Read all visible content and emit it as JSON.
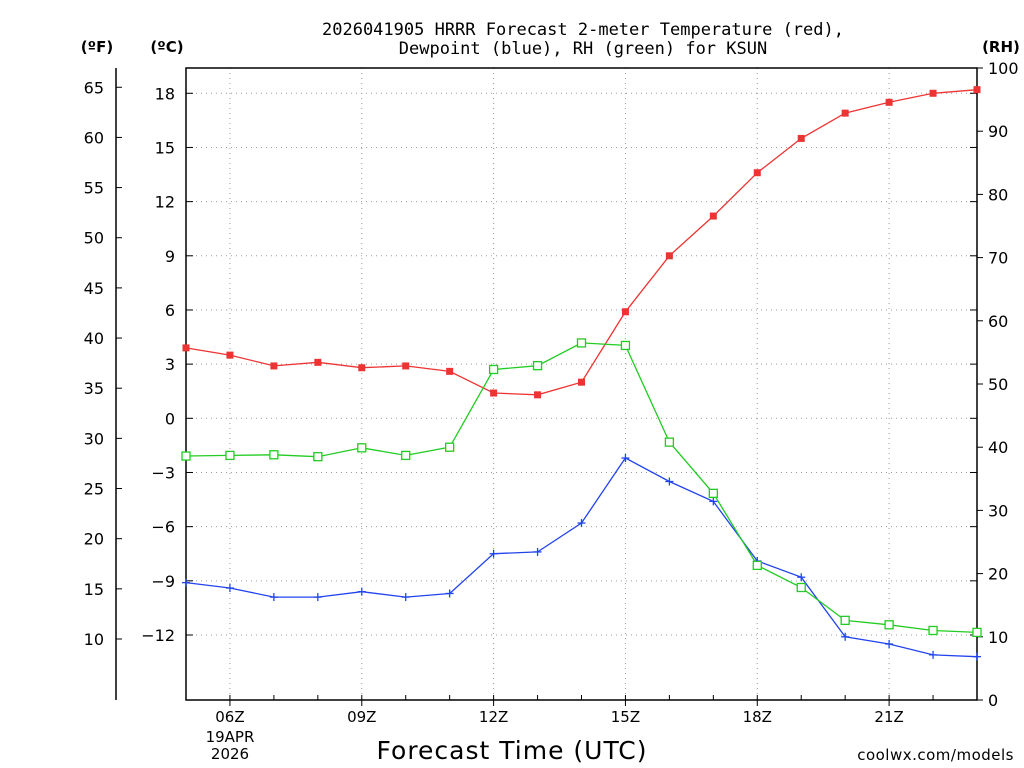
{
  "title": {
    "line1": "2026041905 HRRR Forecast 2-meter Temperature (red),",
    "line2": "Dewpoint (blue), RH (green) for KSUN"
  },
  "axis_headers": {
    "fahrenheit": "(ºF)",
    "celsius": "(ºC)",
    "rh": "(RH)"
  },
  "xlabel": "Forecast Time (UTC)",
  "date_label": {
    "line1": "19APR",
    "line2": "2026"
  },
  "credit": "coolwx.com/models",
  "colors": {
    "temperature": "#ee3333",
    "dewpoint": "#2244ee",
    "rh": "#22cc22",
    "credit": "#cc2222"
  },
  "chart_data": {
    "type": "line",
    "title": "2026041905 HRRR Forecast 2-meter Temperature (red), Dewpoint (blue), RH (green) for KSUN",
    "xlabel": "Forecast Time (UTC)",
    "x_hours": [
      5,
      6,
      7,
      8,
      9,
      10,
      11,
      12,
      13,
      14,
      15,
      16,
      17,
      18,
      19,
      20,
      21,
      22,
      23
    ],
    "x_ticks": [
      {
        "hour": 6,
        "label": "06Z"
      },
      {
        "hour": 9,
        "label": "09Z"
      },
      {
        "hour": 12,
        "label": "12Z"
      },
      {
        "hour": 15,
        "label": "15Z"
      },
      {
        "hour": 18,
        "label": "18Z"
      },
      {
        "hour": 21,
        "label": "21Z"
      }
    ],
    "x_range": [
      5,
      23
    ],
    "y_celsius_range": [
      -15.6,
      19.4
    ],
    "y_celsius_ticks": [
      18,
      15,
      12,
      9,
      6,
      3,
      0,
      -3,
      -6,
      -9,
      -12
    ],
    "y_fahrenheit_ticks": [
      65,
      60,
      55,
      50,
      45,
      40,
      35,
      30,
      25,
      20,
      15,
      10
    ],
    "y_rh_range": [
      0,
      100
    ],
    "y_rh_ticks": [
      100,
      90,
      80,
      70,
      60,
      50,
      40,
      30,
      20,
      10,
      0
    ],
    "grid": true,
    "series": [
      {
        "name": "Temperature",
        "axis": "celsius",
        "marker": "filled-square",
        "values": [
          3.9,
          3.5,
          2.9,
          3.1,
          2.8,
          2.9,
          2.6,
          1.4,
          1.3,
          2.0,
          5.9,
          9.0,
          11.2,
          13.6,
          15.5,
          16.9,
          17.5,
          18.0,
          18.2
        ]
      },
      {
        "name": "Dewpoint",
        "axis": "celsius",
        "marker": "plus",
        "values": [
          -9.1,
          -9.4,
          -9.9,
          -9.9,
          -9.6,
          -9.9,
          -9.7,
          -7.5,
          -7.4,
          -5.8,
          -2.2,
          -3.5,
          -4.6,
          -7.9,
          -8.8,
          -12.1,
          -12.5,
          -13.1,
          -13.2
        ]
      },
      {
        "name": "RH",
        "axis": "rh",
        "marker": "open-square",
        "values": [
          38.6,
          38.7,
          38.8,
          38.5,
          39.9,
          38.7,
          40.0,
          52.3,
          52.9,
          56.5,
          56.1,
          40.8,
          32.7,
          21.3,
          17.8,
          12.6,
          11.9,
          11.0,
          10.7
        ]
      }
    ]
  }
}
